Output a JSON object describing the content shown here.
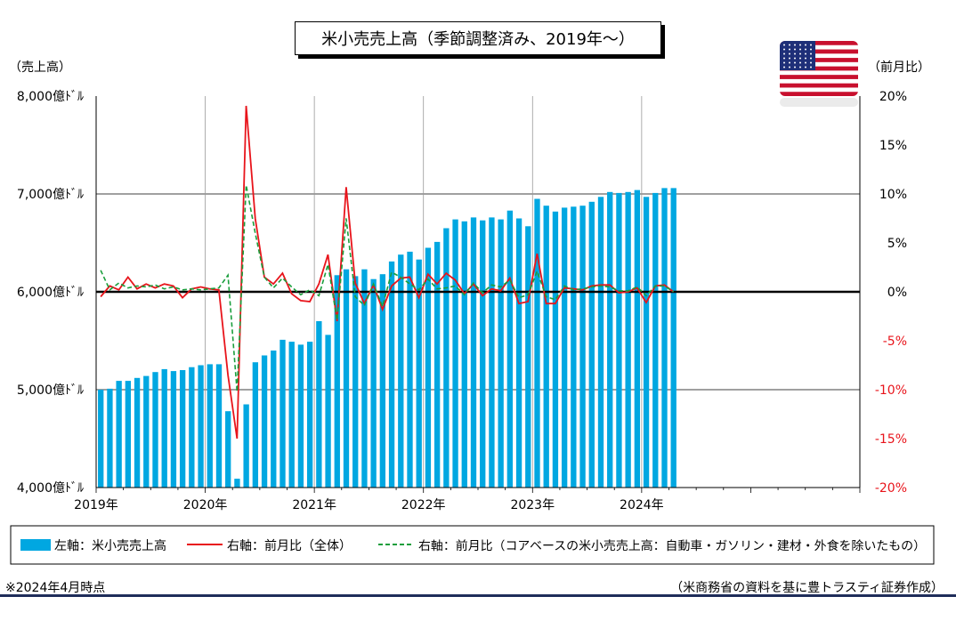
{
  "title": "米小売売上高（季節調整済み、2019年～）",
  "footnote": "※2024年4月時点",
  "source": "（米商務省の資料を基に豊トラスティ証券作成）",
  "flag_icon": "us-flag-icon",
  "colors": {
    "bar": "#00a7e1",
    "total": "#e8141b",
    "core": "#1a9e3c",
    "zero_line": "#000000",
    "bottom_rule": "#1f2d5a"
  },
  "chart_data": {
    "type": "bar+line",
    "left_axis": {
      "title": "（売上高）",
      "min": 4000,
      "max": 8000,
      "ticks": [
        4000,
        5000,
        6000,
        7000,
        8000
      ],
      "tick_labels": [
        "4,000億ﾄﾞﾙ",
        "5,000億ﾄﾞﾙ",
        "6,000億ﾄﾞﾙ",
        "7,000億ﾄﾞﾙ",
        "8,000億ﾄﾞﾙ"
      ]
    },
    "right_axis": {
      "title": "（前月比）",
      "min": -20,
      "max": 20,
      "ticks": [
        -20,
        -15,
        -10,
        -5,
        0,
        5,
        10,
        15,
        20
      ],
      "tick_labels": [
        "-20%",
        "-15%",
        "-10%",
        "-5%",
        "0%",
        "5%",
        "10%",
        "15%",
        "20%"
      ]
    },
    "x_labels": [
      "2019年",
      "2020年",
      "2021年",
      "2022年",
      "2023年",
      "2024年"
    ],
    "x_range": [
      "2019-01",
      "2025-12"
    ],
    "gridlines": {
      "horizontal": [
        5000,
        7000
      ],
      "vertical_years": [
        "2020-01",
        "2021-01",
        "2022-01",
        "2023-01",
        "2024-01"
      ]
    },
    "legend_position": "bottom",
    "series": [
      {
        "name": "左軸：米小売売上高",
        "kind": "bar",
        "axis": "left",
        "start": "2019-01",
        "values": [
          5000,
          5010,
          5090,
          5090,
          5120,
          5140,
          5180,
          5210,
          5190,
          5200,
          5230,
          5250,
          5260,
          5260,
          4780,
          4090,
          4850,
          5280,
          5350,
          5400,
          5510,
          5490,
          5460,
          5490,
          5700,
          5560,
          6170,
          6230,
          6160,
          6230,
          6130,
          6180,
          6310,
          6380,
          6410,
          6330,
          6450,
          6510,
          6650,
          6740,
          6720,
          6760,
          6730,
          6760,
          6740,
          6830,
          6750,
          6670,
          6950,
          6880,
          6820,
          6860,
          6870,
          6880,
          6920,
          6970,
          7020,
          7010,
          7020,
          7040,
          6970,
          7010,
          7060,
          7060
        ]
      },
      {
        "name": "右軸：前月比（全体）",
        "kind": "line",
        "axis": "right",
        "start": "2019-01",
        "values": [
          -0.5,
          0.6,
          0.2,
          1.5,
          0.3,
          0.8,
          0.4,
          0.8,
          0.6,
          -0.6,
          0.3,
          0.5,
          0.3,
          0.2,
          -8.5,
          -15,
          19,
          7.5,
          1.5,
          0.8,
          1.9,
          -0.2,
          -0.9,
          -1,
          0.8,
          3.8,
          -3,
          10.7,
          0.9,
          -1.2,
          0.7,
          -1.8,
          0.6,
          1.4,
          1.5,
          -0.6,
          1.8,
          0.8,
          1.9,
          1.2,
          -0.2,
          0.8,
          -0.4,
          0.3,
          0.1,
          1.4,
          -1.2,
          -1,
          3.9,
          -1.2,
          -1.2,
          0.4,
          0.3,
          0.2,
          0.6,
          0.7,
          0.7,
          -0.1,
          0,
          0.4,
          -1.1,
          0.6,
          0.7,
          0
        ]
      },
      {
        "name": "右軸：前月比（コアベースの米小売売上高：自動車・ガソリン・建材・外食を除いたもの）",
        "kind": "line",
        "axis": "right",
        "start": "2019-01",
        "values": [
          2.2,
          0.2,
          0.9,
          0.4,
          0.6,
          0.5,
          0.7,
          0.3,
          0.5,
          0.2,
          0.3,
          0.2,
          0.3,
          0.4,
          1.7,
          -10.2,
          10.9,
          6,
          1.5,
          0.4,
          1.4,
          0.5,
          -0.3,
          0.2,
          -0.4,
          2.8,
          -2.9,
          7.5,
          -0.5,
          -1.4,
          0.8,
          -1.5,
          2,
          1.5,
          0.8,
          0.2,
          1.3,
          0.3,
          0.4,
          0.6,
          -0.3,
          0.9,
          -0.1,
          0.7,
          0.5,
          1.2,
          -0.6,
          -0.3,
          2.1,
          -0.5,
          -0.8,
          0.6,
          0.2,
          0.3,
          0.5,
          0.6,
          0.5,
          0.1,
          0.1,
          0.5,
          -0.4,
          0.6,
          0.6,
          0
        ]
      }
    ]
  }
}
